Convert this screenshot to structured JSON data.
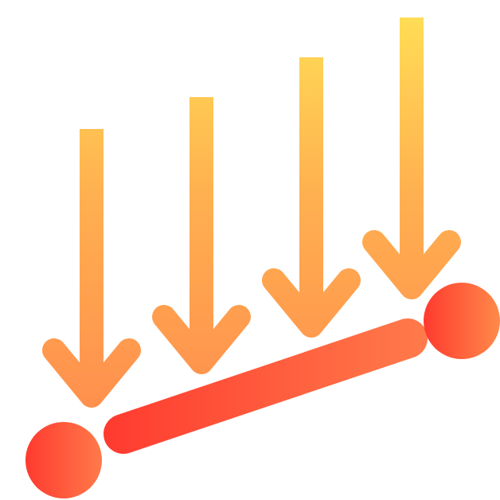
{
  "icon": {
    "name": "distributed-load-icon",
    "description_words": []
  },
  "colors": {
    "arrow_top": "#FFDD55",
    "arrow_bottom": "#FF8F4D",
    "beam_left": "#FF3A2F",
    "beam_right": "#FF7A4A",
    "node_left": "#FF3A2F",
    "node_right": "#FF8A4A",
    "background": "#FFFFFF"
  }
}
